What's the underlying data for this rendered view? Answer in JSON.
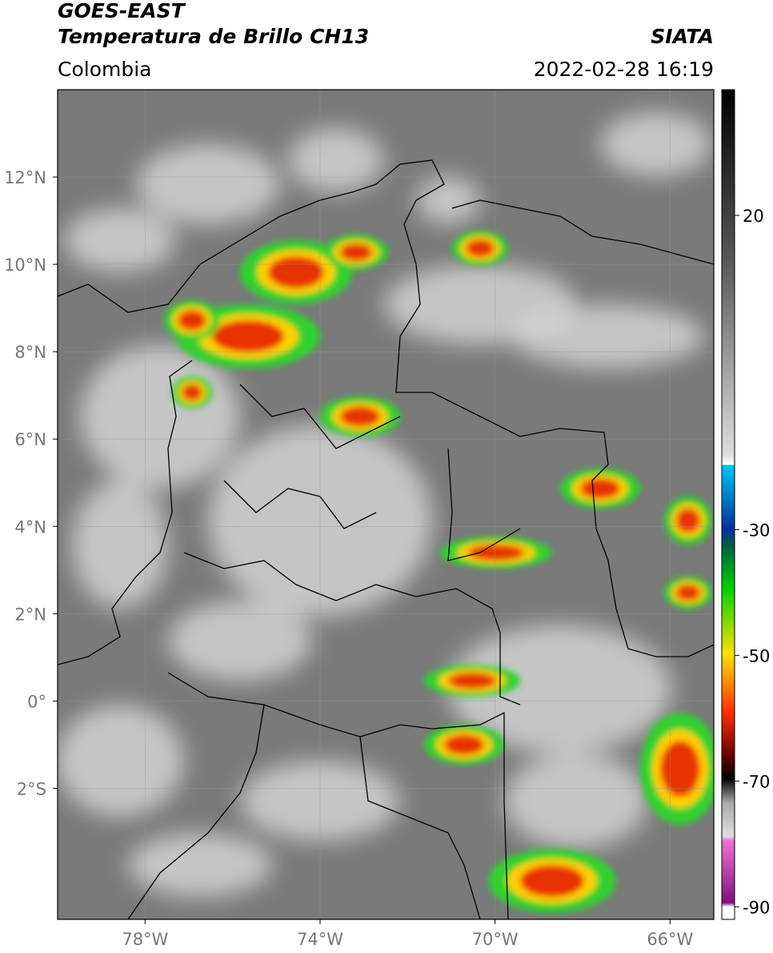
{
  "header": {
    "title": "GOES-EAST",
    "subtitle": "Temperatura de Brillo CH13",
    "source": "SIATA",
    "region": "Colombia",
    "datetime": "2022-02-28 16:19"
  },
  "map": {
    "xlim": [
      -80,
      -65
    ],
    "ylim": [
      -5,
      14
    ],
    "xticks": [
      {
        "value": -78,
        "label": "78°W"
      },
      {
        "value": -74,
        "label": "74°W"
      },
      {
        "value": -70,
        "label": "70°W"
      },
      {
        "value": -66,
        "label": "66°W"
      }
    ],
    "yticks": [
      {
        "value": 12,
        "label": "12°N"
      },
      {
        "value": 10,
        "label": "10°N"
      },
      {
        "value": 8,
        "label": "8°N"
      },
      {
        "value": 6,
        "label": "6°N"
      },
      {
        "value": 4,
        "label": "4°N"
      },
      {
        "value": 2,
        "label": "2°N"
      },
      {
        "value": 0,
        "label": "0°"
      },
      {
        "value": -2,
        "label": "2°S"
      }
    ],
    "grid": true
  },
  "colorbar": {
    "lim": [
      -92,
      40
    ],
    "ticks": [
      20,
      -30,
      -50,
      -70,
      -90
    ]
  }
}
